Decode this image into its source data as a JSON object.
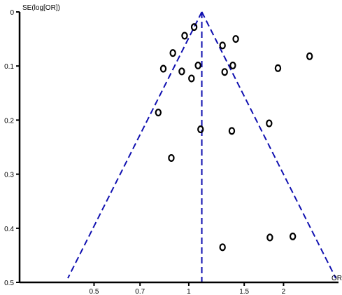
{
  "chart_data": {
    "type": "scatter",
    "title": "",
    "xlabel": "OR",
    "ylabel": "SE(log[OR])",
    "x_scale": "log",
    "y_reversed": true,
    "xlim": [
      0.29,
      2.99
    ],
    "ylim": [
      0,
      0.5
    ],
    "x_ticks": [
      {
        "value": 0.5,
        "label": "0.5"
      },
      {
        "value": 0.7,
        "label": "0.7"
      },
      {
        "value": 1,
        "label": "1"
      },
      {
        "value": 1.5,
        "label": "1.5"
      },
      {
        "value": 2,
        "label": "2"
      }
    ],
    "y_ticks": [
      {
        "value": 0,
        "label": "0"
      },
      {
        "value": 0.1,
        "label": "0.1"
      },
      {
        "value": 0.2,
        "label": "0.2"
      },
      {
        "value": 0.3,
        "label": "0.3"
      },
      {
        "value": 0.4,
        "label": "0.4"
      },
      {
        "value": 0.5,
        "label": "0.5"
      }
    ],
    "pooled_or": 1.1,
    "points": [
      {
        "or": 1.04,
        "se": 0.028
      },
      {
        "or": 0.97,
        "se": 0.044
      },
      {
        "or": 1.41,
        "se": 0.05
      },
      {
        "or": 1.28,
        "se": 0.062
      },
      {
        "or": 0.89,
        "se": 0.076
      },
      {
        "or": 2.42,
        "se": 0.082
      },
      {
        "or": 1.07,
        "se": 0.099
      },
      {
        "or": 1.38,
        "se": 0.099
      },
      {
        "or": 0.83,
        "se": 0.105
      },
      {
        "or": 1.92,
        "se": 0.104
      },
      {
        "or": 0.95,
        "se": 0.11
      },
      {
        "or": 1.3,
        "se": 0.111
      },
      {
        "or": 1.02,
        "se": 0.123
      },
      {
        "or": 0.8,
        "se": 0.186
      },
      {
        "or": 1.8,
        "se": 0.206
      },
      {
        "or": 1.09,
        "se": 0.217
      },
      {
        "or": 1.37,
        "se": 0.22
      },
      {
        "or": 0.88,
        "se": 0.27
      },
      {
        "or": 2.14,
        "se": 0.415
      },
      {
        "or": 1.81,
        "se": 0.417
      },
      {
        "or": 1.28,
        "se": 0.435
      }
    ],
    "colors": {
      "funnel": "#1010b0",
      "axis": "#000000",
      "point": "#000000"
    }
  }
}
